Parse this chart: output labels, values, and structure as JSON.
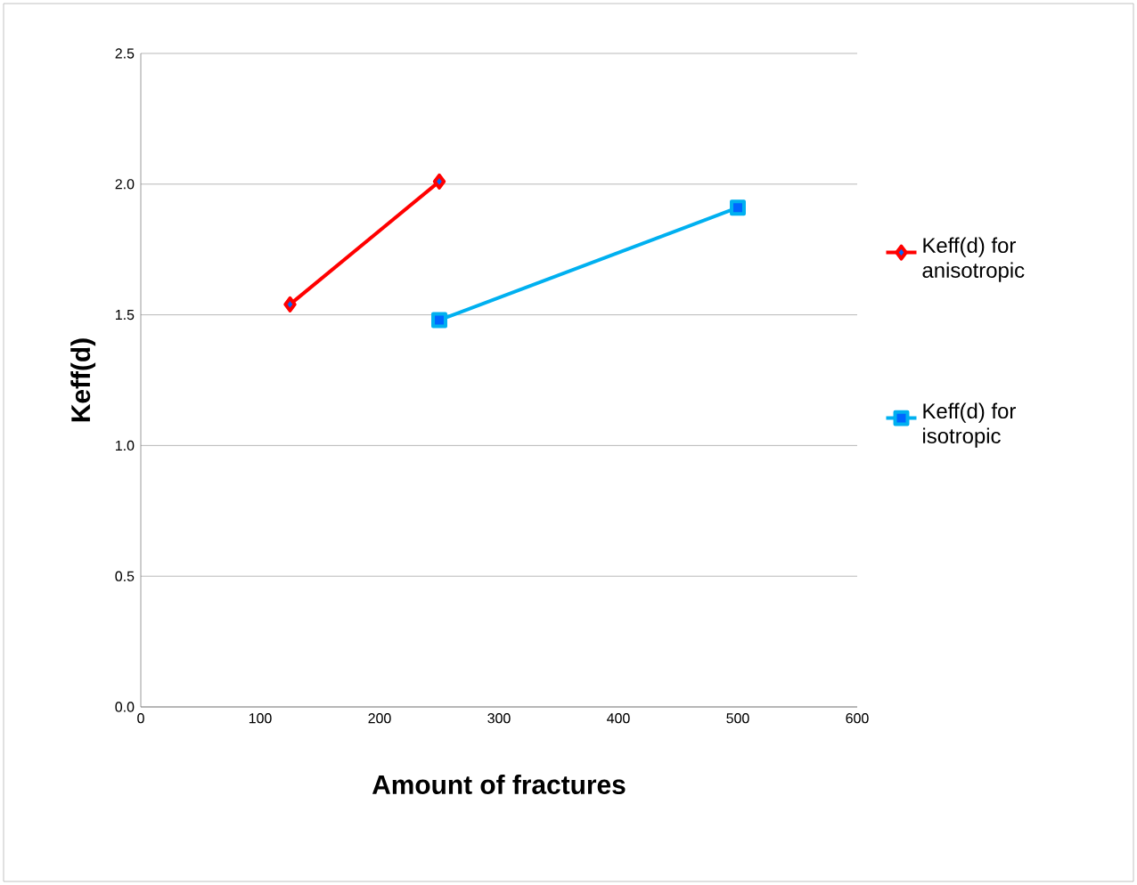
{
  "chart_data": {
    "type": "line",
    "xlabel": "Amount of fractures",
    "ylabel": "Keff(d)",
    "xlim": [
      0,
      600
    ],
    "xticks": [
      0,
      100,
      200,
      300,
      400,
      500,
      600
    ],
    "ylim": [
      0,
      2.5
    ],
    "yticks": [
      {
        "value": 0,
        "label": "0.0"
      },
      {
        "value": 0.5,
        "label": "0.5"
      },
      {
        "value": 1,
        "label": "1.0"
      },
      {
        "value": 1.5,
        "label": "1.5"
      },
      {
        "value": 2,
        "label": "2.0"
      },
      {
        "value": 2.5,
        "label": "2.5"
      }
    ],
    "grid": "y",
    "legend": "right",
    "series": [
      {
        "name": "Keff(d) for anisotropic",
        "color": "#ff0000",
        "marker": "diamond",
        "x": [
          125,
          250
        ],
        "values": [
          1.54,
          2.01
        ]
      },
      {
        "name": "Keff(d) for isotropic",
        "color": "#00b0f0",
        "marker": "square",
        "x": [
          250,
          500
        ],
        "values": [
          1.48,
          1.91
        ]
      }
    ]
  }
}
